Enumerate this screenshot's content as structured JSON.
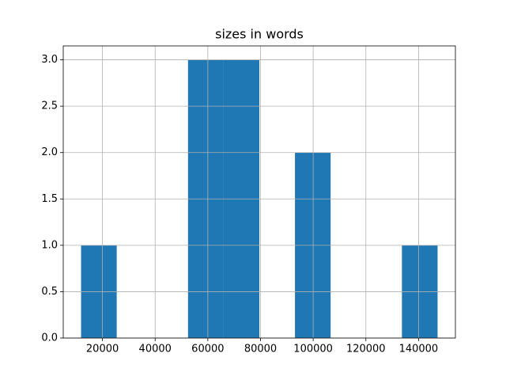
{
  "chart_data": {
    "type": "histogram",
    "title": "sizes in words",
    "bins": [
      11880,
      25414,
      38948,
      52482,
      66016,
      79550,
      93084,
      106618,
      120152,
      133686,
      147220
    ],
    "values": [
      1,
      0,
      0,
      3,
      3,
      0,
      2,
      0,
      0,
      1
    ],
    "color": "#1f77b4",
    "xlim": [
      5113,
      153987
    ],
    "xticks": [
      20000,
      40000,
      60000,
      80000,
      100000,
      120000,
      140000
    ],
    "ylim": [
      0,
      3.15
    ],
    "yticks": [
      {
        "value": 0,
        "label": "0.0"
      },
      0.5,
      {
        "value": 1,
        "label": "1.0"
      },
      1.5,
      {
        "value": 2,
        "label": "2.0"
      },
      2.5,
      {
        "value": 3,
        "label": "3.0"
      }
    ],
    "grid": true
  }
}
